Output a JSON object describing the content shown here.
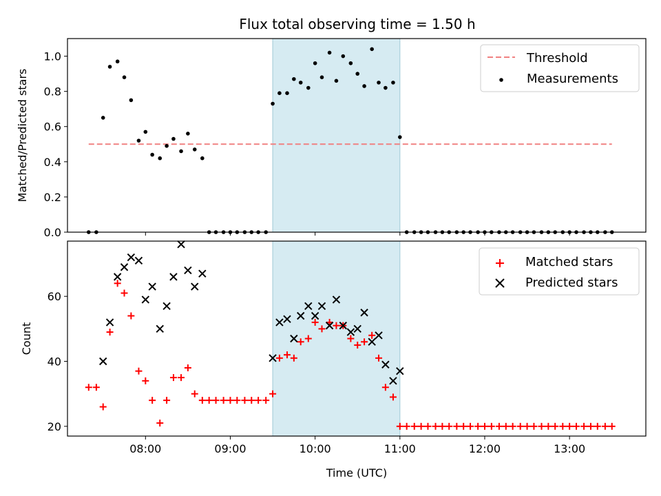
{
  "title": "Flux total observing time = 1.50 h",
  "colors": {
    "threshold": "#f08080",
    "measurements": "#000000",
    "matched": "#ff0000",
    "predicted": "#000000",
    "highlight": "#add8e6"
  },
  "chart_data": [
    {
      "type": "scatter",
      "name": "ratio-panel",
      "ylabel": "Matched/Predicted stars",
      "xlabel": "",
      "xlim": [
        7.08,
        13.9
      ],
      "ylim": [
        0.0,
        1.1
      ],
      "yticks": [
        0.0,
        0.2,
        0.4,
        0.6,
        0.8,
        1.0
      ],
      "ytick_labels": [
        "0.0",
        "0.2",
        "0.4",
        "0.6",
        "0.8",
        "1.0"
      ],
      "xticks": [
        8,
        9,
        10,
        11,
        12,
        13
      ],
      "highlight_span": [
        9.5,
        11.0
      ],
      "threshold": {
        "name": "Threshold",
        "y": 0.5,
        "x_start": 7.33,
        "x_end": 13.5
      },
      "legend": [
        "Threshold",
        "Measurements"
      ],
      "legend_position": "top-right",
      "series": [
        {
          "name": "Measurements",
          "marker": "dot",
          "x": [
            7.33,
            7.42,
            7.5,
            7.58,
            7.67,
            7.75,
            7.83,
            7.92,
            8.0,
            8.08,
            8.17,
            8.25,
            8.33,
            8.42,
            8.5,
            8.58,
            8.67,
            8.75,
            8.83,
            8.92,
            9.0,
            9.08,
            9.17,
            9.25,
            9.33,
            9.42,
            9.5,
            9.58,
            9.67,
            9.75,
            9.83,
            9.92,
            10.0,
            10.08,
            10.17,
            10.25,
            10.33,
            10.42,
            10.5,
            10.58,
            10.67,
            10.75,
            10.83,
            10.92,
            11.0,
            11.08,
            11.17,
            11.25,
            11.33,
            11.42,
            11.5,
            11.58,
            11.67,
            11.75,
            11.83,
            11.92,
            12.0,
            12.08,
            12.17,
            12.25,
            12.33,
            12.42,
            12.5,
            12.58,
            12.67,
            12.75,
            12.83,
            12.92,
            13.0,
            13.08,
            13.17,
            13.25,
            13.33,
            13.42,
            13.5
          ],
          "y": [
            0.0,
            0.0,
            0.65,
            0.94,
            0.97,
            0.88,
            0.75,
            0.52,
            0.57,
            0.44,
            0.42,
            0.49,
            0.53,
            0.46,
            0.56,
            0.47,
            0.42,
            0.0,
            0.0,
            0.0,
            0.0,
            0.0,
            0.0,
            0.0,
            0.0,
            0.0,
            0.73,
            0.79,
            0.79,
            0.87,
            0.85,
            0.82,
            0.96,
            0.88,
            1.02,
            0.86,
            1.0,
            0.96,
            0.9,
            0.83,
            1.04,
            0.85,
            0.82,
            0.85,
            0.54,
            0.0,
            0.0,
            0.0,
            0.0,
            0.0,
            0.0,
            0.0,
            0.0,
            0.0,
            0.0,
            0.0,
            0.0,
            0.0,
            0.0,
            0.0,
            0.0,
            0.0,
            0.0,
            0.0,
            0.0,
            0.0,
            0.0,
            0.0,
            0.0,
            0.0,
            0.0,
            0.0,
            0.0,
            0.0,
            0.0
          ]
        }
      ]
    },
    {
      "type": "scatter",
      "name": "count-panel",
      "ylabel": "Count",
      "xlabel": "Time (UTC)",
      "xlim": [
        7.08,
        13.9
      ],
      "ylim": [
        17,
        77
      ],
      "yticks": [
        20,
        40,
        60
      ],
      "ytick_labels": [
        "20",
        "40",
        "60"
      ],
      "xticks": [
        8,
        9,
        10,
        11,
        12,
        13
      ],
      "xtick_labels": [
        "08:00",
        "09:00",
        "10:00",
        "11:00",
        "12:00",
        "13:00"
      ],
      "highlight_span": [
        9.5,
        11.0
      ],
      "legend": [
        "Matched stars",
        "Predicted stars"
      ],
      "legend_position": "top-right",
      "series": [
        {
          "name": "Matched stars",
          "marker": "plus",
          "x": [
            7.33,
            7.42,
            7.5,
            7.58,
            7.67,
            7.75,
            7.83,
            7.92,
            8.0,
            8.08,
            8.17,
            8.25,
            8.33,
            8.42,
            8.5,
            8.58,
            8.67,
            8.75,
            8.83,
            8.92,
            9.0,
            9.08,
            9.17,
            9.25,
            9.33,
            9.42,
            9.5,
            9.58,
            9.67,
            9.75,
            9.83,
            9.92,
            10.0,
            10.08,
            10.17,
            10.25,
            10.33,
            10.42,
            10.5,
            10.58,
            10.67,
            10.75,
            10.83,
            10.92,
            11.0,
            11.08,
            11.17,
            11.25,
            11.33,
            11.42,
            11.5,
            11.58,
            11.67,
            11.75,
            11.83,
            11.92,
            12.0,
            12.08,
            12.17,
            12.25,
            12.33,
            12.42,
            12.5,
            12.58,
            12.67,
            12.75,
            12.83,
            12.92,
            13.0,
            13.08,
            13.17,
            13.25,
            13.33,
            13.42,
            13.5
          ],
          "y": [
            32,
            32,
            26,
            49,
            64,
            61,
            54,
            37,
            34,
            28,
            21,
            28,
            35,
            35,
            38,
            30,
            28,
            28,
            28,
            28,
            28,
            28,
            28,
            28,
            28,
            28,
            30,
            41,
            42,
            41,
            46,
            47,
            52,
            50,
            52,
            51,
            51,
            47,
            45,
            46,
            48,
            41,
            32,
            29,
            20,
            20,
            20,
            20,
            20,
            20,
            20,
            20,
            20,
            20,
            20,
            20,
            20,
            20,
            20,
            20,
            20,
            20,
            20,
            20,
            20,
            20,
            20,
            20,
            20,
            20,
            20,
            20,
            20,
            20,
            20
          ]
        },
        {
          "name": "Predicted stars",
          "marker": "x",
          "x": [
            7.5,
            7.58,
            7.67,
            7.75,
            7.83,
            7.92,
            8.0,
            8.08,
            8.17,
            8.25,
            8.33,
            8.42,
            8.5,
            8.58,
            8.67,
            9.5,
            9.58,
            9.67,
            9.75,
            9.83,
            9.92,
            10.0,
            10.08,
            10.17,
            10.25,
            10.33,
            10.42,
            10.5,
            10.58,
            10.67,
            10.75,
            10.83,
            10.92,
            11.0
          ],
          "y": [
            40,
            52,
            66,
            69,
            72,
            71,
            59,
            63,
            50,
            57,
            66,
            76,
            68,
            63,
            67,
            41,
            52,
            53,
            47,
            54,
            57,
            54,
            57,
            51,
            59,
            51,
            49,
            50,
            55,
            46,
            48,
            39,
            34,
            37
          ]
        }
      ]
    }
  ]
}
